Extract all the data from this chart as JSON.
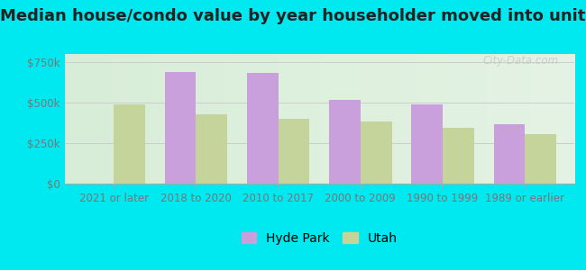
{
  "title": "Median house/condo value by year householder moved into unit",
  "categories": [
    "2021 or later",
    "2018 to 2020",
    "2010 to 2017",
    "2000 to 2009",
    "1990 to 1999",
    "1989 or earlier"
  ],
  "hyde_park": [
    null,
    690000,
    685000,
    515000,
    490000,
    365000
  ],
  "utah": [
    490000,
    430000,
    400000,
    385000,
    345000,
    305000
  ],
  "hyde_park_color": "#c9a0dc",
  "utah_color": "#c5d49a",
  "background_outer": "#00e8f0",
  "background_inner_left": "#d8edd8",
  "background_inner_right": "#f5faf0",
  "ylim": [
    0,
    800000
  ],
  "yticks": [
    0,
    250000,
    500000,
    750000
  ],
  "ytick_labels": [
    "$0",
    "$250k",
    "$500k",
    "$750k"
  ],
  "bar_width": 0.38,
  "legend_labels": [
    "Hyde Park",
    "Utah"
  ],
  "watermark": "City-Data.com",
  "title_fontsize": 13,
  "axis_fontsize": 8.5,
  "legend_fontsize": 10,
  "tick_color": "#777777",
  "grid_color": "#cccccc"
}
